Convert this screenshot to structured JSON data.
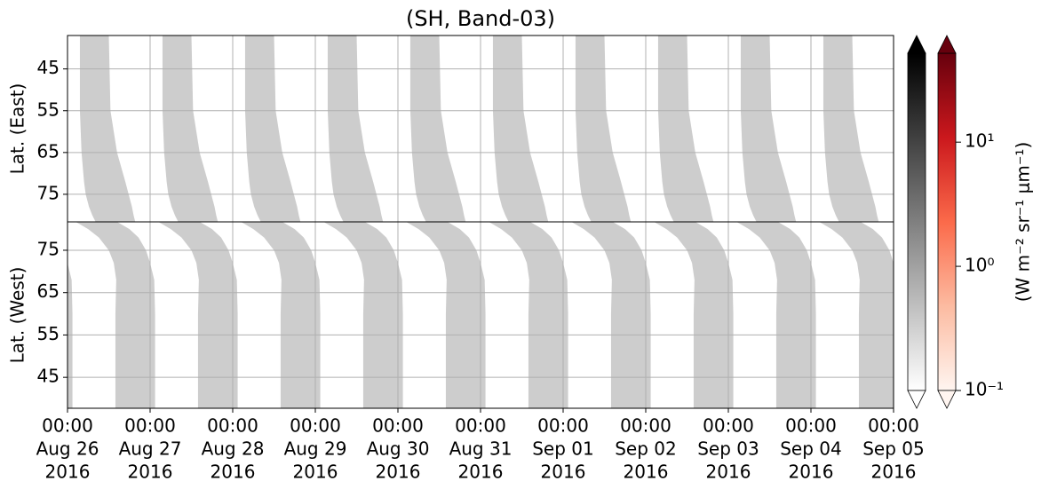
{
  "chart_data": {
    "type": "swath-map",
    "title": "(SH, Band-03)",
    "xlim": [
      "2016-08-26T00:00",
      "2016-09-05T00:00"
    ],
    "xticks": [
      {
        "value": "2016-08-26T00:00",
        "label": [
          "00:00",
          "Aug 26",
          "2016"
        ]
      },
      {
        "value": "2016-08-27T00:00",
        "label": [
          "00:00",
          "Aug 27",
          "2016"
        ]
      },
      {
        "value": "2016-08-28T00:00",
        "label": [
          "00:00",
          "Aug 28",
          "2016"
        ]
      },
      {
        "value": "2016-08-29T00:00",
        "label": [
          "00:00",
          "Aug 29",
          "2016"
        ]
      },
      {
        "value": "2016-08-30T00:00",
        "label": [
          "00:00",
          "Aug 30",
          "2016"
        ]
      },
      {
        "value": "2016-08-31T00:00",
        "label": [
          "00:00",
          "Aug 31",
          "2016"
        ]
      },
      {
        "value": "2016-09-01T00:00",
        "label": [
          "00:00",
          "Sep 01",
          "2016"
        ]
      },
      {
        "value": "2016-09-02T00:00",
        "label": [
          "00:00",
          "Sep 02",
          "2016"
        ]
      },
      {
        "value": "2016-09-03T00:00",
        "label": [
          "00:00",
          "Sep 03",
          "2016"
        ]
      },
      {
        "value": "2016-09-04T00:00",
        "label": [
          "00:00",
          "Sep 04",
          "2016"
        ]
      },
      {
        "value": "2016-09-05T00:00",
        "label": [
          "00:00",
          "Sep 05",
          "2016"
        ]
      }
    ],
    "grid": true,
    "panels": [
      {
        "ylabel": "Lat. (East)",
        "ylim": [
          37,
          81.6
        ],
        "yticks": [
          45,
          55,
          65,
          75
        ],
        "color": "#cdcdcd",
        "swath_starts": [
          "2016-08-26T00:00",
          "2016-08-27T00:00",
          "2016-08-28T00:00",
          "2016-08-29T00:00",
          "2016-08-30T00:00",
          "2016-08-31T00:00",
          "2016-09-01T00:00",
          "2016-09-02T00:00",
          "2016-09-03T00:00",
          "2016-09-04T00:00"
        ],
        "edge_lat": [
          37,
          55,
          65,
          72,
          75,
          78,
          80,
          81.6
        ],
        "left_edge_days": [
          0.15,
          0.15,
          0.17,
          0.2,
          0.22,
          0.26,
          0.3,
          0.34
        ],
        "right_edge_days": [
          0.5,
          0.52,
          0.6,
          0.7,
          0.74,
          0.78,
          0.8,
          0.82
        ]
      },
      {
        "ylabel": "Lat. (West)",
        "ylim": [
          81.7,
          37.7
        ],
        "yticks": [
          75,
          65,
          55,
          45
        ],
        "color": "#cdcdcd",
        "swath_starts": [
          "2016-08-25T00:00",
          "2016-08-26T00:00",
          "2016-08-27T00:00",
          "2016-08-28T00:00",
          "2016-08-29T00:00",
          "2016-08-30T00:00",
          "2016-08-31T00:00",
          "2016-09-01T00:00",
          "2016-09-02T00:00",
          "2016-09-03T00:00",
          "2016-09-04T00:00"
        ],
        "edge_lat": [
          37.7,
          60,
          68,
          72,
          75,
          78,
          80,
          81.7
        ],
        "left_edge_days": [
          0.58,
          0.58,
          0.59,
          0.56,
          0.5,
          0.38,
          0.25,
          0.1
        ],
        "right_edge_days": [
          1.06,
          1.06,
          1.05,
          1.0,
          0.95,
          0.86,
          0.75,
          0.6
        ]
      }
    ],
    "colorbars": [
      {
        "colors": [
          "#ffffff",
          "#000000"
        ],
        "clim": [
          0.1,
          52
        ],
        "log": true
      },
      {
        "colors": [
          "#fff5f0",
          "#fcbba1",
          "#fb6a4a",
          "#cb181d",
          "#67000d"
        ],
        "clim": [
          0.1,
          52
        ],
        "log": true,
        "ticks": [
          {
            "value": 0.1,
            "label": "10⁻¹"
          },
          {
            "value": 1,
            "label": "10⁰"
          },
          {
            "value": 10,
            "label": "10¹"
          }
        ],
        "label": "(W m⁻² sr⁻¹ μm⁻¹)"
      }
    ]
  }
}
